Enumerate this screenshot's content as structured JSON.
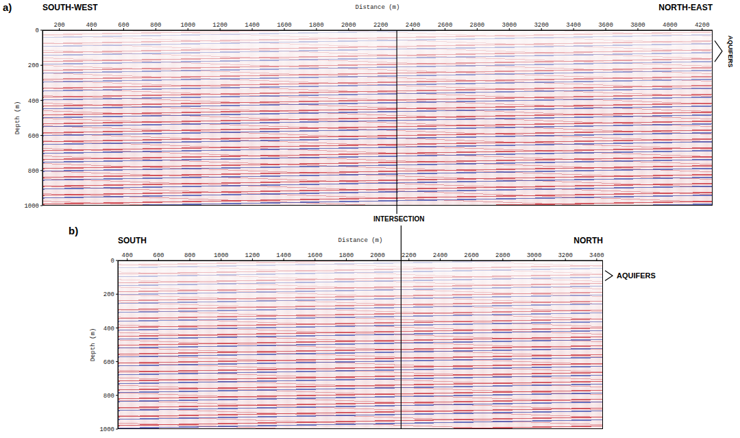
{
  "annotation": "INTERSECTION",
  "chart_data": [
    {
      "type": "seismic_section",
      "title": "a)",
      "left_label": "SOUTH-WEST",
      "right_label": "NORTH-EAST",
      "x_label": "Distance (m)",
      "y_label": "Depth (m)",
      "xlim": [
        95,
        4265
      ],
      "xticks": [
        200,
        400,
        600,
        800,
        1000,
        1200,
        1400,
        1600,
        1800,
        2000,
        2200,
        2400,
        2600,
        2800,
        3000,
        3200,
        3400,
        3600,
        3800,
        4000,
        4200
      ],
      "ylim": [
        0,
        1000
      ],
      "yticks": [
        0,
        200,
        400,
        600,
        800,
        1000
      ],
      "aquifers_label": "AQUIFERS",
      "aquifers_depth": [
        60,
        180
      ],
      "intersection": 2300
    },
    {
      "type": "seismic_section",
      "title": "b)",
      "left_label": "SOUTH",
      "right_label": "NORTH",
      "x_label": "Distance (m)",
      "y_label": "Depth (m)",
      "xlim": [
        340,
        3440
      ],
      "xticks": [
        400,
        600,
        800,
        1000,
        1200,
        1400,
        1600,
        1800,
        2000,
        2200,
        2400,
        2600,
        2800,
        3000,
        3200,
        3400
      ],
      "ylim": [
        0,
        1000
      ],
      "yticks": [
        0,
        200,
        400,
        600,
        800,
        1000
      ],
      "aquifers_label": "AQUIFERS",
      "aquifers_depth": [
        60,
        120
      ],
      "intersection": 2150
    }
  ]
}
